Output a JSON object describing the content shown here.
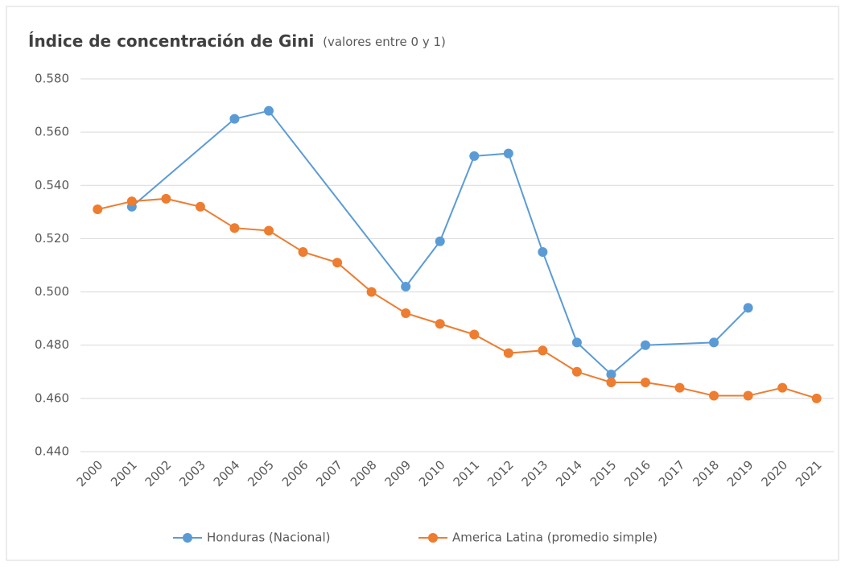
{
  "chart_data": {
    "type": "line",
    "title": "Índice de concentración de Gini",
    "subtitle": "(valores entre 0 y 1)",
    "categories": [
      "2000",
      "2001",
      "2002",
      "2003",
      "2004",
      "2005",
      "2006",
      "2007",
      "2008",
      "2009",
      "2010",
      "2011",
      "2012",
      "2013",
      "2014",
      "2015",
      "2016",
      "2017",
      "2018",
      "2019",
      "2020",
      "2021"
    ],
    "series": [
      {
        "name": "Honduras (Nacional)",
        "color": "#5b9bd5",
        "values": [
          null,
          0.532,
          null,
          null,
          0.565,
          0.568,
          null,
          null,
          null,
          0.502,
          0.519,
          0.551,
          0.552,
          0.515,
          0.481,
          0.469,
          0.48,
          null,
          0.481,
          0.494,
          null,
          null
        ]
      },
      {
        "name": "America Latina (promedio simple)",
        "color": "#ed7d31",
        "values": [
          0.531,
          0.534,
          0.535,
          0.532,
          0.524,
          0.523,
          0.515,
          0.511,
          0.5,
          0.492,
          0.488,
          0.484,
          0.477,
          0.478,
          0.47,
          0.466,
          0.466,
          0.464,
          0.461,
          0.461,
          0.464,
          0.46
        ]
      }
    ],
    "ylim": [
      0.44,
      0.58
    ],
    "yticks": [
      {
        "value": 0.44,
        "label": "0.440"
      },
      {
        "value": 0.46,
        "label": "0.460"
      },
      {
        "value": 0.48,
        "label": "0.480"
      },
      {
        "value": 0.5,
        "label": "0.500"
      },
      {
        "value": 0.52,
        "label": "0.520"
      },
      {
        "value": 0.54,
        "label": "0.540"
      },
      {
        "value": 0.56,
        "label": "0.560"
      },
      {
        "value": 0.58,
        "label": "0.580"
      }
    ],
    "grid": true,
    "span_gaps": true,
    "legend": "bottom"
  }
}
